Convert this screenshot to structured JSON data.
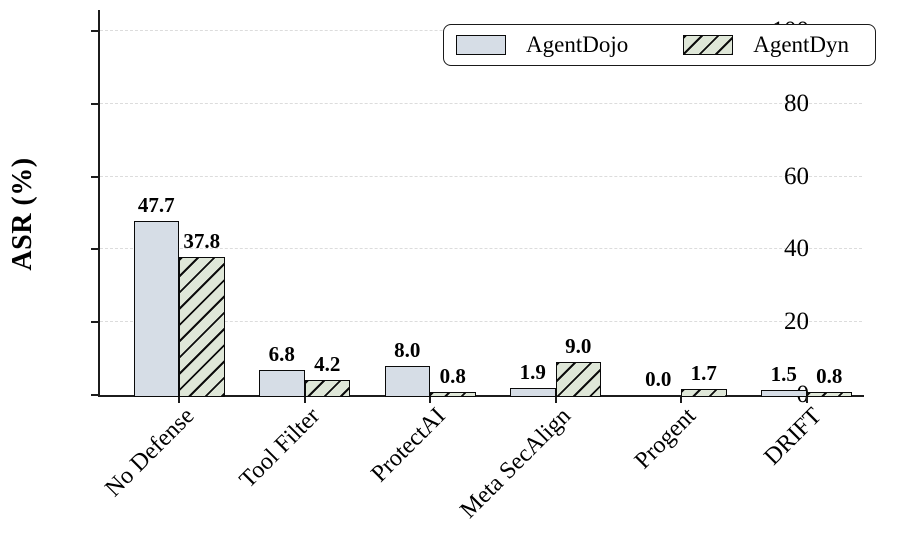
{
  "chart_data": {
    "type": "bar",
    "title": "",
    "ylabel": "ASR (%)",
    "xlabel": "",
    "categories": [
      "No Defense",
      "Tool Filter",
      "ProtectAI",
      "Meta SecAlign",
      "Progent",
      "DRIFT"
    ],
    "series": [
      {
        "name": "AgentDojo",
        "values": [
          47.7,
          6.8,
          8.0,
          1.9,
          0.0,
          1.5
        ],
        "fill": "#d6dde6",
        "hatch": "none"
      },
      {
        "name": "AgentDyn",
        "values": [
          37.8,
          4.2,
          0.8,
          9.0,
          1.7,
          0.8
        ],
        "fill": "#dfe7d8",
        "hatch": "diagonal"
      }
    ],
    "bar_edge_color": "#0a0a0a",
    "value_labels": true,
    "value_label_decimals": 1,
    "ylim": [
      0,
      105.8
    ],
    "yticks": [
      0,
      20,
      40,
      60,
      80,
      100
    ],
    "grid": {
      "axis": "y",
      "style": "dashed",
      "color": "#dcdcdc"
    },
    "legend": {
      "position": "upper-right",
      "entries": [
        "AgentDojo",
        "AgentDyn"
      ]
    }
  }
}
